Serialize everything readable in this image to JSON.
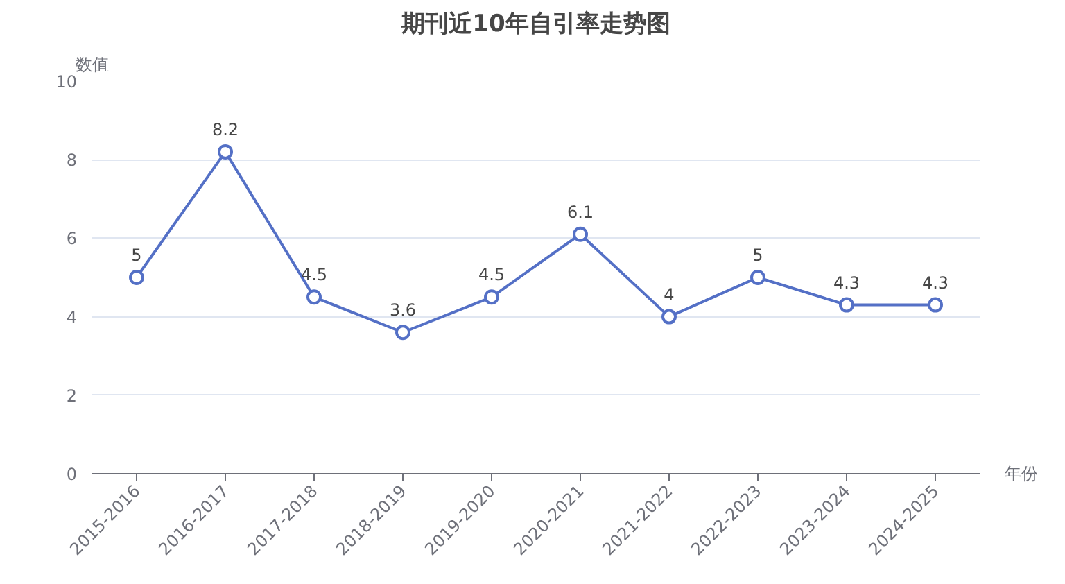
{
  "chart_data": {
    "type": "line",
    "title": "期刊近10年自引率走势图",
    "ylabel": "数值",
    "xlabel": "年份",
    "categories": [
      "2015-2016",
      "2016-2017",
      "2017-2018",
      "2018-2019",
      "2019-2020",
      "2020-2021",
      "2021-2022",
      "2022-2023",
      "2023-2024",
      "2024-2025"
    ],
    "series": [
      {
        "color": "#5470c6",
        "values": [
          5,
          8.2,
          4.5,
          3.6,
          4.5,
          6.1,
          4,
          5,
          4.3,
          4.3
        ]
      }
    ],
    "ylim": [
      0,
      10
    ],
    "yticks": [
      0,
      2,
      4,
      6,
      8,
      10
    ],
    "grid": "y",
    "marker": "circle",
    "line_style": "solid",
    "data_labels": true
  }
}
